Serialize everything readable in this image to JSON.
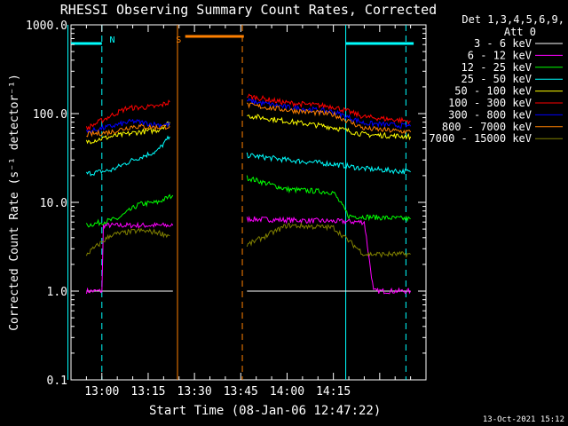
{
  "chart_data": {
    "type": "line",
    "title": "RHESSI Observing Summary Count Rates, Corrected",
    "ylabel": "Corrected Count Rate (s⁻¹ detector⁻¹)",
    "xlabel": "Start Time (08-Jan-06 12:47:22)",
    "yscale": "log",
    "ylim": [
      0.1,
      1000
    ],
    "y_ticks": [
      0.1,
      1.0,
      10.0,
      100.0,
      1000.0
    ],
    "y_tick_labels": [
      "0.1",
      "1.0",
      "10.0",
      "100.0",
      "1000.0"
    ],
    "xlim_min": [
      -10,
      105
    ],
    "x_ticks_min": [
      15,
      30,
      45,
      60,
      75
    ],
    "x_tick_labels": [
      "13:00",
      "13:15",
      "13:30",
      "13:45",
      "14:00",
      "14:15"
    ],
    "x_tick_positions_min": [
      0,
      15,
      30,
      45,
      60,
      75
    ],
    "detector_label": "Det 1,3,4,5,6,9,",
    "attenuator_label": "Att 0",
    "timestamp": "13-Oct-2021 15:12",
    "gap_min": [
      25,
      46
    ],
    "series": [
      {
        "name": "3 - 6 keV",
        "color": "#ffffff",
        "segments": [
          [
            [
              -5,
              1.0
            ],
            [
              23,
              1.0
            ]
          ],
          [
            [
              47,
              1.0
            ],
            [
              100,
              1.0
            ]
          ]
        ]
      },
      {
        "name": "6 - 12 keV",
        "color": "#ff00ff",
        "segments": [
          [
            [
              -5,
              1.0
            ],
            [
              0,
              1.0
            ],
            [
              0.5,
              5.5
            ],
            [
              23,
              5.5
            ]
          ],
          [
            [
              47,
              6.5
            ],
            [
              85,
              6
            ],
            [
              88,
              1
            ],
            [
              100,
              1
            ]
          ]
        ]
      },
      {
        "name": "12 - 25 keV",
        "color": "#00ff00",
        "segments": [
          [
            [
              -5,
              5.5
            ],
            [
              5,
              6.5
            ],
            [
              12,
              9.5
            ],
            [
              18,
              10
            ],
            [
              23,
              12
            ]
          ],
          [
            [
              47,
              19
            ],
            [
              60,
              14
            ],
            [
              75,
              13
            ],
            [
              80,
              7
            ],
            [
              100,
              6.5
            ]
          ]
        ]
      },
      {
        "name": "25 - 50 keV",
        "color": "#00ffff",
        "segments": [
          [
            [
              -5,
              21
            ],
            [
              3,
              23
            ],
            [
              10,
              30
            ],
            [
              18,
              38
            ],
            [
              22,
              55
            ]
          ],
          [
            [
              47,
              34
            ],
            [
              60,
              30
            ],
            [
              75,
              27
            ],
            [
              85,
              24
            ],
            [
              100,
              22
            ]
          ]
        ]
      },
      {
        "name": "50 - 100 keV",
        "color": "#ffff00",
        "segments": [
          [
            [
              -5,
              48
            ],
            [
              3,
              55
            ],
            [
              12,
              62
            ],
            [
              18,
              65
            ],
            [
              22,
              80
            ]
          ],
          [
            [
              47,
              95
            ],
            [
              60,
              82
            ],
            [
              75,
              70
            ],
            [
              85,
              58
            ],
            [
              100,
              55
            ]
          ]
        ]
      },
      {
        "name": "100 - 300 keV",
        "color": "#ff0000",
        "segments": [
          [
            [
              -5,
              68
            ],
            [
              3,
              95
            ],
            [
              8,
              115
            ],
            [
              18,
              120
            ],
            [
              22,
              135
            ]
          ],
          [
            [
              47,
              158
            ],
            [
              60,
              132
            ],
            [
              75,
              120
            ],
            [
              85,
              92
            ],
            [
              100,
              82
            ]
          ]
        ]
      },
      {
        "name": "300 - 800 keV",
        "color": "#0000ff",
        "segments": [
          [
            [
              -5,
              62
            ],
            [
              3,
              72
            ],
            [
              10,
              82
            ],
            [
              18,
              75
            ],
            [
              22,
              75
            ]
          ],
          [
            [
              47,
              140
            ],
            [
              60,
              118
            ],
            [
              75,
              105
            ],
            [
              85,
              78
            ],
            [
              100,
              72
            ]
          ]
        ]
      },
      {
        "name": "800 - 7000 keV",
        "color": "#ff8000",
        "segments": [
          [
            [
              -5,
              58
            ],
            [
              3,
              62
            ],
            [
              10,
              72
            ],
            [
              18,
              70
            ],
            [
              22,
              72
            ]
          ],
          [
            [
              47,
              125
            ],
            [
              60,
              110
            ],
            [
              75,
              98
            ],
            [
              85,
              68
            ],
            [
              100,
              62
            ]
          ]
        ]
      },
      {
        "name": "7000 - 15000 keV",
        "color": "#808000",
        "segments": [
          [
            [
              -5,
              2.6
            ],
            [
              3,
              4.3
            ],
            [
              12,
              4.8
            ],
            [
              18,
              4.6
            ],
            [
              22,
              4.2
            ]
          ],
          [
            [
              47,
              3.3
            ],
            [
              60,
              5.5
            ],
            [
              75,
              5.2
            ],
            [
              85,
              2.6
            ],
            [
              100,
              2.6
            ]
          ]
        ]
      }
    ],
    "annotations": {
      "saa_bars": [
        {
          "from": -12,
          "to": 0
        },
        {
          "from": 79,
          "to": 101
        }
      ],
      "night_bar": {
        "from": 27,
        "to": 46
      },
      "vlines": [
        {
          "t": -11,
          "style": "solid",
          "color": "#00ffff"
        },
        {
          "t": 0,
          "style": "dashed",
          "color": "#00ffff"
        },
        {
          "t": 24.5,
          "style": "solid",
          "color": "#ff8000"
        },
        {
          "t": 45.5,
          "style": "dashed",
          "color": "#ff8000"
        },
        {
          "t": 79,
          "style": "solid",
          "color": "#00ffff"
        },
        {
          "t": 98.5,
          "style": "dashed",
          "color": "#00ffff"
        }
      ],
      "labels": [
        {
          "text": "N",
          "t": 2.5,
          "color": "#00ffff"
        },
        {
          "text": "S",
          "t": 24,
          "color": "#ff8000"
        }
      ]
    }
  }
}
